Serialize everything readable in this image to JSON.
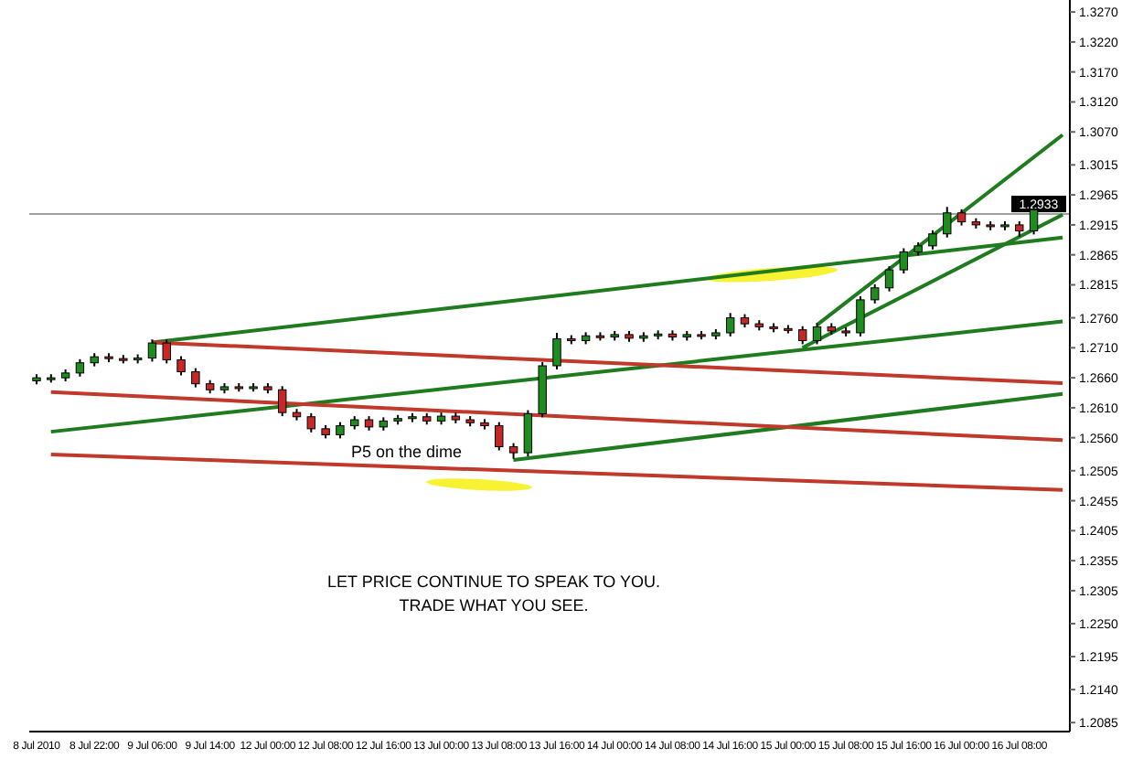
{
  "chart_data": {
    "type": "candlestick",
    "categories": [
      "8 Jul 2010",
      null,
      null,
      null,
      "8 Jul 22:00",
      null,
      null,
      null,
      "9 Jul 06:00",
      null,
      null,
      null,
      "9 Jul 14:00",
      null,
      null,
      null,
      "12 Jul 00:00",
      null,
      null,
      null,
      "12 Jul 08:00",
      null,
      null,
      null,
      "12 Jul 16:00",
      null,
      null,
      null,
      "13 Jul 00:00",
      null,
      null,
      null,
      "13 Jul 08:00",
      null,
      null,
      null,
      "13 Jul 16:00",
      null,
      null,
      null,
      "14 Jul 00:00",
      null,
      null,
      null,
      "14 Jul 08:00",
      null,
      null,
      null,
      "14 Jul 16:00",
      null,
      null,
      null,
      "15 Jul 00:00",
      null,
      null,
      null,
      "15 Jul 08:00",
      null,
      null,
      null,
      "15 Jul 16:00",
      null,
      null,
      null,
      "16 Jul 00:00",
      null,
      null,
      null,
      "16 Jul 08:00",
      null,
      null,
      null
    ],
    "ohlc": [
      [
        1.2655,
        1.2666,
        1.2649,
        1.266
      ],
      [
        1.266,
        1.2666,
        1.2652,
        1.266
      ],
      [
        1.266,
        1.2674,
        1.2654,
        1.2668
      ],
      [
        1.2668,
        1.2691,
        1.2662,
        1.2685
      ],
      [
        1.2685,
        1.2701,
        1.2679,
        1.2695
      ],
      [
        1.2695,
        1.2701,
        1.2686,
        1.2692
      ],
      [
        1.2692,
        1.2698,
        1.2684,
        1.269
      ],
      [
        1.269,
        1.2699,
        1.2684,
        1.2693
      ],
      [
        1.2693,
        1.2724,
        1.2687,
        1.2718
      ],
      [
        1.2718,
        1.2724,
        1.2684,
        1.269
      ],
      [
        1.269,
        1.2696,
        1.2664,
        1.267
      ],
      [
        1.267,
        1.2676,
        1.2644,
        1.265
      ],
      [
        1.265,
        1.2656,
        1.2634,
        1.264
      ],
      [
        1.264,
        1.2651,
        1.2634,
        1.2645
      ],
      [
        1.2645,
        1.2651,
        1.2637,
        1.2643
      ],
      [
        1.2643,
        1.2651,
        1.2637,
        1.2645
      ],
      [
        1.2645,
        1.2651,
        1.2634,
        1.264
      ],
      [
        1.264,
        1.2646,
        1.2596,
        1.2602
      ],
      [
        1.2602,
        1.2608,
        1.2589,
        1.2595
      ],
      [
        1.2595,
        1.2601,
        1.2569,
        1.2575
      ],
      [
        1.2575,
        1.2581,
        1.2559,
        1.2565
      ],
      [
        1.2565,
        1.2586,
        1.2559,
        1.258
      ],
      [
        1.258,
        1.2596,
        1.2574,
        1.259
      ],
      [
        1.259,
        1.2596,
        1.2572,
        1.2578
      ],
      [
        1.2578,
        1.2594,
        1.2572,
        1.2588
      ],
      [
        1.2588,
        1.2598,
        1.2582,
        1.2592
      ],
      [
        1.2592,
        1.2601,
        1.2586,
        1.2595
      ],
      [
        1.2595,
        1.2601,
        1.2582,
        1.2588
      ],
      [
        1.2588,
        1.2602,
        1.2582,
        1.2596
      ],
      [
        1.2596,
        1.2602,
        1.2584,
        1.259
      ],
      [
        1.259,
        1.2596,
        1.2579,
        1.2585
      ],
      [
        1.2585,
        1.2591,
        1.2574,
        1.258
      ],
      [
        1.258,
        1.2586,
        1.2539,
        1.2545
      ],
      [
        1.2545,
        1.2551,
        1.2525,
        1.2535
      ],
      [
        1.2535,
        1.2606,
        1.2529,
        1.26
      ],
      [
        1.26,
        1.2686,
        1.2594,
        1.268
      ],
      [
        1.268,
        1.2735,
        1.2674,
        1.2725
      ],
      [
        1.2725,
        1.2731,
        1.2716,
        1.2722
      ],
      [
        1.2722,
        1.2736,
        1.2716,
        1.273
      ],
      [
        1.273,
        1.2736,
        1.2722,
        1.2728
      ],
      [
        1.2728,
        1.2738,
        1.2722,
        1.2732
      ],
      [
        1.2732,
        1.2738,
        1.272,
        1.2726
      ],
      [
        1.2726,
        1.2736,
        1.272,
        1.273
      ],
      [
        1.273,
        1.2739,
        1.2724,
        1.2733
      ],
      [
        1.2733,
        1.2739,
        1.2722,
        1.2728
      ],
      [
        1.2728,
        1.2738,
        1.2722,
        1.2732
      ],
      [
        1.2732,
        1.2738,
        1.2724,
        1.273
      ],
      [
        1.273,
        1.2741,
        1.2724,
        1.2735
      ],
      [
        1.2735,
        1.2768,
        1.2729,
        1.276
      ],
      [
        1.276,
        1.2766,
        1.2744,
        1.275
      ],
      [
        1.275,
        1.2756,
        1.2739,
        1.2745
      ],
      [
        1.2745,
        1.2751,
        1.2736,
        1.2742
      ],
      [
        1.2742,
        1.2748,
        1.2734,
        1.274
      ],
      [
        1.274,
        1.2746,
        1.2716,
        1.2722
      ],
      [
        1.2722,
        1.2751,
        1.2716,
        1.2745
      ],
      [
        1.2745,
        1.2751,
        1.2732,
        1.2738
      ],
      [
        1.2738,
        1.2744,
        1.2729,
        1.2735
      ],
      [
        1.2735,
        1.2796,
        1.2729,
        1.279
      ],
      [
        1.279,
        1.2816,
        1.2784,
        1.281
      ],
      [
        1.281,
        1.2846,
        1.2804,
        1.284
      ],
      [
        1.284,
        1.2876,
        1.2834,
        1.287
      ],
      [
        1.287,
        1.2886,
        1.2864,
        1.288
      ],
      [
        1.288,
        1.2906,
        1.2874,
        1.29
      ],
      [
        1.29,
        1.2945,
        1.2894,
        1.2935
      ],
      [
        1.2935,
        1.2941,
        1.2914,
        1.292
      ],
      [
        1.292,
        1.2926,
        1.2909,
        1.2915
      ],
      [
        1.2915,
        1.2921,
        1.2906,
        1.2912
      ],
      [
        1.2912,
        1.2921,
        1.2906,
        1.2915
      ],
      [
        1.2915,
        1.2921,
        1.2895,
        1.2905
      ],
      [
        1.2905,
        1.2946,
        1.2899,
        1.294
      ],
      null,
      null
    ],
    "series": [
      {
        "type": "line",
        "color": "#1e7b1e",
        "values": [
          null,
          null,
          null,
          null,
          null,
          null,
          null,
          null,
          1.2719,
          null,
          null,
          null,
          null,
          null,
          null,
          null,
          null,
          null,
          null,
          null,
          null,
          null,
          null,
          null,
          null,
          null,
          null,
          null,
          null,
          null,
          null,
          null,
          null,
          null,
          null,
          null,
          null,
          null,
          null,
          null,
          null,
          null,
          null,
          null,
          null,
          null,
          null,
          null,
          null,
          null,
          null,
          null,
          null,
          null,
          null,
          null,
          null,
          null,
          null,
          null,
          null,
          null,
          null,
          null,
          null,
          null,
          null,
          null,
          null,
          null,
          null,
          1.2894
        ]
      },
      {
        "type": "line",
        "color": "#1e7b1e",
        "values": [
          null,
          1.257,
          null,
          null,
          null,
          null,
          null,
          null,
          null,
          null,
          null,
          null,
          null,
          null,
          null,
          null,
          null,
          null,
          null,
          null,
          null,
          null,
          null,
          null,
          null,
          null,
          null,
          null,
          null,
          null,
          null,
          null,
          null,
          null,
          null,
          null,
          null,
          null,
          null,
          null,
          null,
          null,
          null,
          null,
          null,
          null,
          null,
          null,
          null,
          null,
          null,
          null,
          null,
          null,
          null,
          null,
          null,
          null,
          null,
          null,
          null,
          null,
          null,
          null,
          null,
          null,
          null,
          null,
          null,
          null,
          null,
          1.2754
        ]
      },
      {
        "type": "line",
        "color": "#1e7b1e",
        "values": [
          null,
          null,
          null,
          null,
          null,
          null,
          null,
          null,
          null,
          null,
          null,
          null,
          null,
          null,
          null,
          null,
          null,
          null,
          null,
          null,
          null,
          null,
          null,
          null,
          null,
          null,
          null,
          null,
          null,
          null,
          null,
          null,
          null,
          1.2523,
          null,
          null,
          null,
          null,
          null,
          null,
          null,
          null,
          null,
          null,
          null,
          null,
          null,
          null,
          null,
          null,
          null,
          null,
          null,
          null,
          null,
          null,
          null,
          null,
          null,
          null,
          null,
          null,
          null,
          null,
          null,
          null,
          null,
          null,
          null,
          null,
          null,
          1.2633
        ]
      },
      {
        "type": "line",
        "color": "#c0392b",
        "values": [
          null,
          null,
          null,
          null,
          null,
          null,
          null,
          null,
          1.2719,
          null,
          null,
          null,
          null,
          null,
          null,
          null,
          null,
          null,
          null,
          null,
          null,
          null,
          null,
          null,
          null,
          null,
          null,
          null,
          null,
          null,
          null,
          null,
          null,
          null,
          null,
          null,
          null,
          null,
          null,
          null,
          null,
          null,
          null,
          null,
          null,
          null,
          null,
          null,
          null,
          null,
          null,
          null,
          null,
          null,
          null,
          null,
          null,
          null,
          null,
          null,
          null,
          null,
          null,
          null,
          null,
          null,
          null,
          null,
          null,
          null,
          null,
          1.2651
        ]
      },
      {
        "type": "line",
        "color": "#c0392b",
        "values": [
          null,
          1.2636,
          null,
          null,
          null,
          null,
          null,
          null,
          null,
          null,
          null,
          null,
          null,
          null,
          null,
          null,
          null,
          null,
          null,
          null,
          null,
          null,
          null,
          null,
          null,
          null,
          null,
          null,
          null,
          null,
          null,
          null,
          null,
          null,
          null,
          null,
          null,
          null,
          null,
          null,
          null,
          null,
          null,
          null,
          null,
          null,
          null,
          null,
          null,
          null,
          null,
          null,
          null,
          null,
          null,
          null,
          null,
          null,
          null,
          null,
          null,
          null,
          null,
          null,
          null,
          null,
          null,
          null,
          null,
          null,
          null,
          1.2556
        ]
      },
      {
        "type": "line",
        "color": "#c0392b",
        "values": [
          null,
          1.2532,
          null,
          null,
          null,
          null,
          null,
          null,
          null,
          null,
          null,
          null,
          null,
          null,
          null,
          null,
          null,
          null,
          null,
          null,
          null,
          null,
          null,
          null,
          null,
          null,
          null,
          null,
          null,
          null,
          null,
          null,
          null,
          null,
          null,
          null,
          null,
          null,
          null,
          null,
          null,
          null,
          null,
          null,
          null,
          null,
          null,
          null,
          null,
          null,
          null,
          null,
          null,
          null,
          null,
          null,
          null,
          null,
          null,
          null,
          null,
          null,
          null,
          null,
          null,
          null,
          null,
          null,
          null,
          null,
          null,
          1.2473
        ]
      },
      {
        "type": "line",
        "color": "#1e7b1e",
        "values": [
          null,
          null,
          null,
          null,
          null,
          null,
          null,
          null,
          null,
          null,
          null,
          null,
          null,
          null,
          null,
          null,
          null,
          null,
          null,
          null,
          null,
          null,
          null,
          null,
          null,
          null,
          null,
          null,
          null,
          null,
          null,
          null,
          null,
          null,
          null,
          null,
          null,
          null,
          null,
          null,
          null,
          null,
          null,
          null,
          null,
          null,
          null,
          null,
          null,
          null,
          null,
          null,
          null,
          1.271,
          null,
          null,
          null,
          null,
          null,
          null,
          null,
          null,
          null,
          null,
          null,
          null,
          null,
          null,
          null,
          null,
          null,
          1.2932
        ]
      },
      {
        "type": "line",
        "color": "#1e7b1e",
        "values": [
          null,
          null,
          null,
          null,
          null,
          null,
          null,
          null,
          null,
          null,
          null,
          null,
          null,
          null,
          null,
          null,
          null,
          null,
          null,
          null,
          null,
          null,
          null,
          null,
          null,
          null,
          null,
          null,
          null,
          null,
          null,
          null,
          null,
          null,
          null,
          null,
          null,
          null,
          null,
          null,
          null,
          null,
          null,
          null,
          null,
          null,
          null,
          null,
          null,
          null,
          null,
          null,
          null,
          null,
          1.2748,
          null,
          null,
          null,
          null,
          null,
          null,
          null,
          null,
          null,
          null,
          null,
          null,
          null,
          null,
          null,
          null,
          1.3065
        ]
      }
    ],
    "ylim": [
      1.207,
      1.329
    ],
    "yticks": [
      {
        "value": 1.327,
        "label": "1.3270"
      },
      {
        "value": 1.322,
        "label": "1.3220"
      },
      {
        "value": 1.317,
        "label": "1.3170"
      },
      {
        "value": 1.312,
        "label": "1.3120"
      },
      {
        "value": 1.307,
        "label": "1.3070"
      },
      1.3015,
      1.2965,
      1.2915,
      1.2865,
      1.2815,
      {
        "value": 1.276,
        "label": "1.2760"
      },
      {
        "value": 1.271,
        "label": "1.2710"
      },
      {
        "value": 1.266,
        "label": "1.2660"
      },
      {
        "value": 1.261,
        "label": "1.2610"
      },
      {
        "value": 1.256,
        "label": "1.2560"
      },
      1.2505,
      1.2455,
      1.2405,
      1.2355,
      1.2305,
      {
        "value": 1.225,
        "label": "1.2250"
      },
      1.2195,
      {
        "value": 1.214,
        "label": "1.2140"
      },
      1.2085
    ],
    "ref_lines": [
      {
        "axis": "y",
        "value": 1.2933,
        "label": "1.2933",
        "color": "#a0a0a0"
      }
    ],
    "annotations": [
      "P5 on the dime",
      "LET PRICE CONTINUE TO SPEAK TO YOU.",
      "TRADE WHAT YOU SEE."
    ]
  }
}
